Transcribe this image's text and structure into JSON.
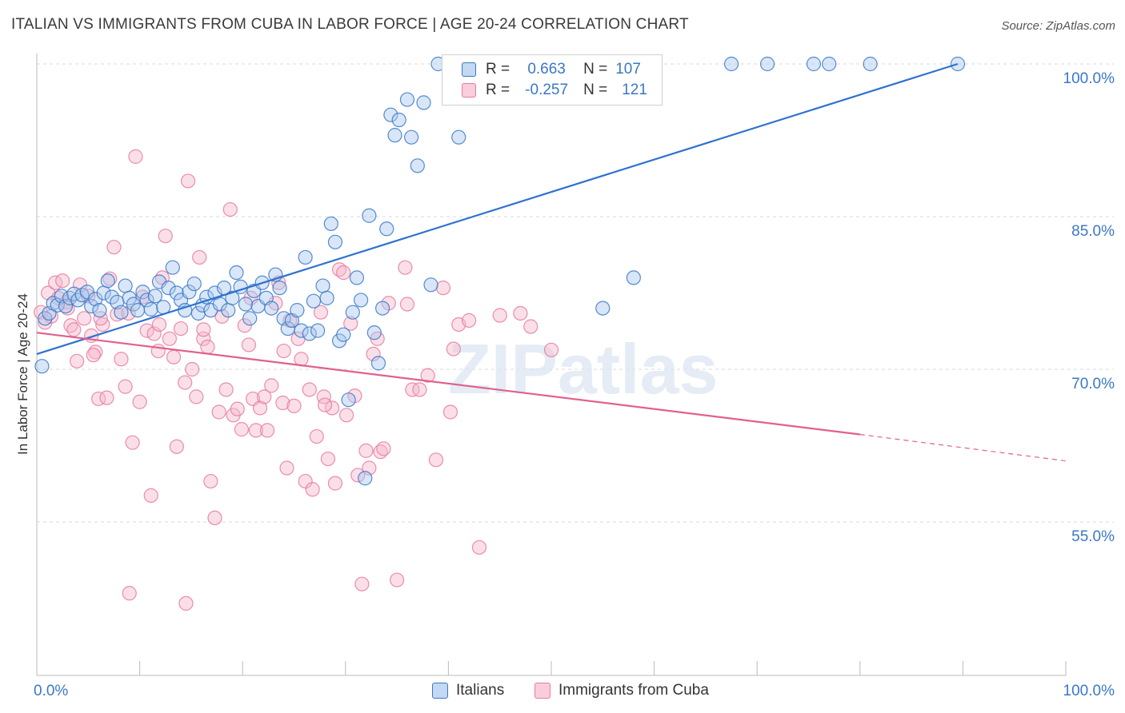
{
  "title": "ITALIAN VS IMMIGRANTS FROM CUBA IN LABOR FORCE | AGE 20-24 CORRELATION CHART",
  "source": "Source: ZipAtlas.com",
  "watermark": "ZIPatlas",
  "colors": {
    "blue": "#3a78c6",
    "blue_fill": "#a9c8ee",
    "blue_line": "#2f72d0",
    "pink": "#e87aa0",
    "pink_fill": "#f5b9cc",
    "pink_line": "#e0608e",
    "grid": "#d9d9d9",
    "tick_label": "#3a78c6"
  },
  "legend": {
    "r_label": "R =",
    "n_label": "N =",
    "rows": [
      {
        "r": "0.663",
        "n": "107"
      },
      {
        "r": "-0.257",
        "n": "121"
      }
    ]
  },
  "chart_data": {
    "type": "scatter",
    "title": "ITALIAN VS IMMIGRANTS FROM CUBA IN LABOR FORCE | AGE 20-24 CORRELATION CHART",
    "xlabel": "",
    "ylabel": "In Labor Force | Age 20-24",
    "xlim": [
      0,
      100
    ],
    "ylim": [
      41,
      101.5
    ],
    "x_tick_labels": [
      "0.0%",
      "100.0%"
    ],
    "y_ticks": [
      55,
      70,
      85,
      100
    ],
    "y_tick_labels": [
      "55.0%",
      "70.0%",
      "85.0%",
      "100.0%"
    ],
    "grid": true,
    "legend_position": "top-center",
    "series": [
      {
        "name": "Italians",
        "color": "#3a78c6",
        "trend": {
          "x0": 0,
          "y0": 71.5,
          "x1": 89.5,
          "y1": 100.0
        },
        "points": [
          [
            0.5,
            70.3
          ],
          [
            0.8,
            75.0
          ],
          [
            1.2,
            75.5
          ],
          [
            1.6,
            76.5
          ],
          [
            2.0,
            76.3
          ],
          [
            2.4,
            77.2
          ],
          [
            2.8,
            76.2
          ],
          [
            3.2,
            77.0
          ],
          [
            3.6,
            77.4
          ],
          [
            4.0,
            76.8
          ],
          [
            4.4,
            77.3
          ],
          [
            4.9,
            77.6
          ],
          [
            5.3,
            76.2
          ],
          [
            5.7,
            76.9
          ],
          [
            6.1,
            75.8
          ],
          [
            6.5,
            77.5
          ],
          [
            6.9,
            78.7
          ],
          [
            7.3,
            77.1
          ],
          [
            7.8,
            76.6
          ],
          [
            8.2,
            75.6
          ],
          [
            8.6,
            78.2
          ],
          [
            9.0,
            77.0
          ],
          [
            9.4,
            76.4
          ],
          [
            9.8,
            75.8
          ],
          [
            10.3,
            77.6
          ],
          [
            10.7,
            76.8
          ],
          [
            11.1,
            75.9
          ],
          [
            11.5,
            77.2
          ],
          [
            11.9,
            78.6
          ],
          [
            12.3,
            76.1
          ],
          [
            12.8,
            78.0
          ],
          [
            13.2,
            80.0
          ],
          [
            13.6,
            77.5
          ],
          [
            14.0,
            76.8
          ],
          [
            14.4,
            75.8
          ],
          [
            14.8,
            77.6
          ],
          [
            15.3,
            78.4
          ],
          [
            15.7,
            75.5
          ],
          [
            16.1,
            76.3
          ],
          [
            16.5,
            77.1
          ],
          [
            16.9,
            75.8
          ],
          [
            17.3,
            77.5
          ],
          [
            17.8,
            76.4
          ],
          [
            18.2,
            78.0
          ],
          [
            18.6,
            75.8
          ],
          [
            19.0,
            77.0
          ],
          [
            19.4,
            79.5
          ],
          [
            19.8,
            78.1
          ],
          [
            20.3,
            76.4
          ],
          [
            20.7,
            75.0
          ],
          [
            21.1,
            77.7
          ],
          [
            21.5,
            76.2
          ],
          [
            21.9,
            78.5
          ],
          [
            22.3,
            77.0
          ],
          [
            22.8,
            76.0
          ],
          [
            23.2,
            79.3
          ],
          [
            23.6,
            78.0
          ],
          [
            24.0,
            75.0
          ],
          [
            24.4,
            74.0
          ],
          [
            24.8,
            74.8
          ],
          [
            25.3,
            75.8
          ],
          [
            25.7,
            73.8
          ],
          [
            26.1,
            81.0
          ],
          [
            26.5,
            73.5
          ],
          [
            26.9,
            76.7
          ],
          [
            27.3,
            73.8
          ],
          [
            27.8,
            78.2
          ],
          [
            28.2,
            77.0
          ],
          [
            28.6,
            84.3
          ],
          [
            29.0,
            82.5
          ],
          [
            29.4,
            72.8
          ],
          [
            29.8,
            73.4
          ],
          [
            30.3,
            67.0
          ],
          [
            30.7,
            75.6
          ],
          [
            31.1,
            79.0
          ],
          [
            31.5,
            76.8
          ],
          [
            31.9,
            59.3
          ],
          [
            32.3,
            85.1
          ],
          [
            32.8,
            73.6
          ],
          [
            33.2,
            70.6
          ],
          [
            33.6,
            76.0
          ],
          [
            34.0,
            83.8
          ],
          [
            34.4,
            95.0
          ],
          [
            34.8,
            93.0
          ],
          [
            35.2,
            94.5
          ],
          [
            36.0,
            96.5
          ],
          [
            36.4,
            92.8
          ],
          [
            37.0,
            90.0
          ],
          [
            37.6,
            96.2
          ],
          [
            38.3,
            78.3
          ],
          [
            39.0,
            100
          ],
          [
            40.2,
            100
          ],
          [
            41.0,
            92.8
          ],
          [
            42.0,
            100
          ],
          [
            43.2,
            100
          ],
          [
            44.5,
            100
          ],
          [
            45.5,
            100
          ],
          [
            46.5,
            100
          ],
          [
            52.5,
            100
          ],
          [
            55.0,
            76.0
          ],
          [
            58.0,
            79.0
          ],
          [
            67.5,
            100
          ],
          [
            71.0,
            100
          ],
          [
            75.5,
            100
          ],
          [
            77.0,
            100
          ],
          [
            81.0,
            100
          ],
          [
            89.5,
            100
          ]
        ]
      },
      {
        "name": "Immigrants from Cuba",
        "color": "#e87aa0",
        "trend": {
          "x0": 0,
          "y0": 73.6,
          "x1": 80.0,
          "y1": 63.6,
          "dash_x1": 100.0,
          "dash_y1": 61.0
        },
        "points": [
          [
            0.4,
            75.6
          ],
          [
            0.8,
            74.6
          ],
          [
            1.1,
            77.5
          ],
          [
            1.4,
            75.2
          ],
          [
            1.8,
            78.5
          ],
          [
            2.1,
            77.0
          ],
          [
            2.5,
            78.7
          ],
          [
            2.9,
            76.6
          ],
          [
            3.3,
            74.3
          ],
          [
            3.6,
            73.9
          ],
          [
            3.9,
            70.8
          ],
          [
            4.2,
            78.3
          ],
          [
            4.6,
            75.0
          ],
          [
            5.0,
            77.2
          ],
          [
            5.3,
            73.3
          ],
          [
            5.7,
            71.7
          ],
          [
            6.0,
            67.1
          ],
          [
            6.4,
            74.4
          ],
          [
            6.8,
            67.2
          ],
          [
            7.1,
            78.9
          ],
          [
            7.5,
            82.0
          ],
          [
            7.8,
            75.4
          ],
          [
            8.2,
            71.0
          ],
          [
            8.6,
            68.3
          ],
          [
            8.9,
            75.5
          ],
          [
            9.3,
            62.8
          ],
          [
            9.6,
            90.9
          ],
          [
            10.0,
            66.8
          ],
          [
            10.3,
            77.1
          ],
          [
            10.7,
            73.8
          ],
          [
            11.1,
            57.6
          ],
          [
            11.4,
            73.5
          ],
          [
            11.8,
            71.8
          ],
          [
            12.2,
            79.0
          ],
          [
            12.5,
            83.1
          ],
          [
            12.9,
            73.0
          ],
          [
            13.3,
            71.2
          ],
          [
            13.6,
            62.4
          ],
          [
            14.0,
            74.0
          ],
          [
            14.4,
            68.7
          ],
          [
            14.7,
            88.5
          ],
          [
            15.1,
            70.0
          ],
          [
            15.5,
            67.3
          ],
          [
            15.8,
            81.0
          ],
          [
            16.2,
            73.0
          ],
          [
            16.6,
            72.2
          ],
          [
            16.9,
            59.0
          ],
          [
            17.3,
            55.4
          ],
          [
            17.7,
            65.8
          ],
          [
            18.0,
            75.2
          ],
          [
            18.4,
            68.0
          ],
          [
            18.8,
            85.7
          ],
          [
            19.1,
            65.5
          ],
          [
            19.5,
            66.1
          ],
          [
            19.9,
            64.1
          ],
          [
            20.2,
            74.3
          ],
          [
            20.6,
            72.4
          ],
          [
            21.0,
            67.1
          ],
          [
            21.3,
            64.0
          ],
          [
            21.7,
            66.2
          ],
          [
            22.1,
            67.3
          ],
          [
            22.4,
            64.0
          ],
          [
            22.8,
            68.4
          ],
          [
            23.2,
            76.5
          ],
          [
            23.5,
            78.5
          ],
          [
            23.9,
            66.7
          ],
          [
            24.3,
            60.3
          ],
          [
            24.6,
            74.8
          ],
          [
            25.0,
            66.4
          ],
          [
            25.4,
            73.0
          ],
          [
            25.7,
            71.0
          ],
          [
            26.1,
            59.0
          ],
          [
            26.5,
            68.0
          ],
          [
            26.8,
            58.2
          ],
          [
            27.2,
            63.4
          ],
          [
            27.6,
            75.6
          ],
          [
            27.9,
            67.3
          ],
          [
            28.3,
            61.2
          ],
          [
            28.7,
            66.2
          ],
          [
            29.0,
            58.8
          ],
          [
            29.4,
            79.8
          ],
          [
            29.8,
            79.5
          ],
          [
            30.1,
            65.5
          ],
          [
            30.5,
            74.5
          ],
          [
            30.9,
            67.4
          ],
          [
            31.2,
            59.6
          ],
          [
            31.6,
            48.9
          ],
          [
            32.0,
            62.0
          ],
          [
            32.3,
            60.3
          ],
          [
            32.7,
            71.5
          ],
          [
            33.1,
            73.0
          ],
          [
            33.4,
            61.9
          ],
          [
            34.2,
            76.5
          ],
          [
            35.0,
            49.3
          ],
          [
            35.8,
            80.0
          ],
          [
            36.5,
            68.0
          ],
          [
            37.2,
            68.0
          ],
          [
            38.0,
            69.4
          ],
          [
            38.8,
            61.1
          ],
          [
            39.5,
            78.0
          ],
          [
            40.2,
            65.8
          ],
          [
            41.0,
            74.4
          ],
          [
            42.0,
            74.8
          ],
          [
            43.0,
            52.5
          ],
          [
            45.0,
            75.3
          ],
          [
            47.0,
            75.5
          ],
          [
            48.0,
            74.2
          ],
          [
            50.0,
            71.9
          ],
          [
            9.0,
            48.0
          ],
          [
            14.5,
            47.0
          ],
          [
            3.0,
            76.0
          ],
          [
            6.2,
            75.0
          ],
          [
            11.9,
            74.4
          ],
          [
            16.2,
            73.9
          ],
          [
            20.8,
            77.0
          ],
          [
            24.0,
            71.8
          ],
          [
            28.0,
            66.5
          ],
          [
            33.7,
            62.2
          ],
          [
            36.0,
            76.4
          ],
          [
            40.5,
            72.0
          ],
          [
            5.5,
            71.4
          ]
        ]
      }
    ]
  }
}
